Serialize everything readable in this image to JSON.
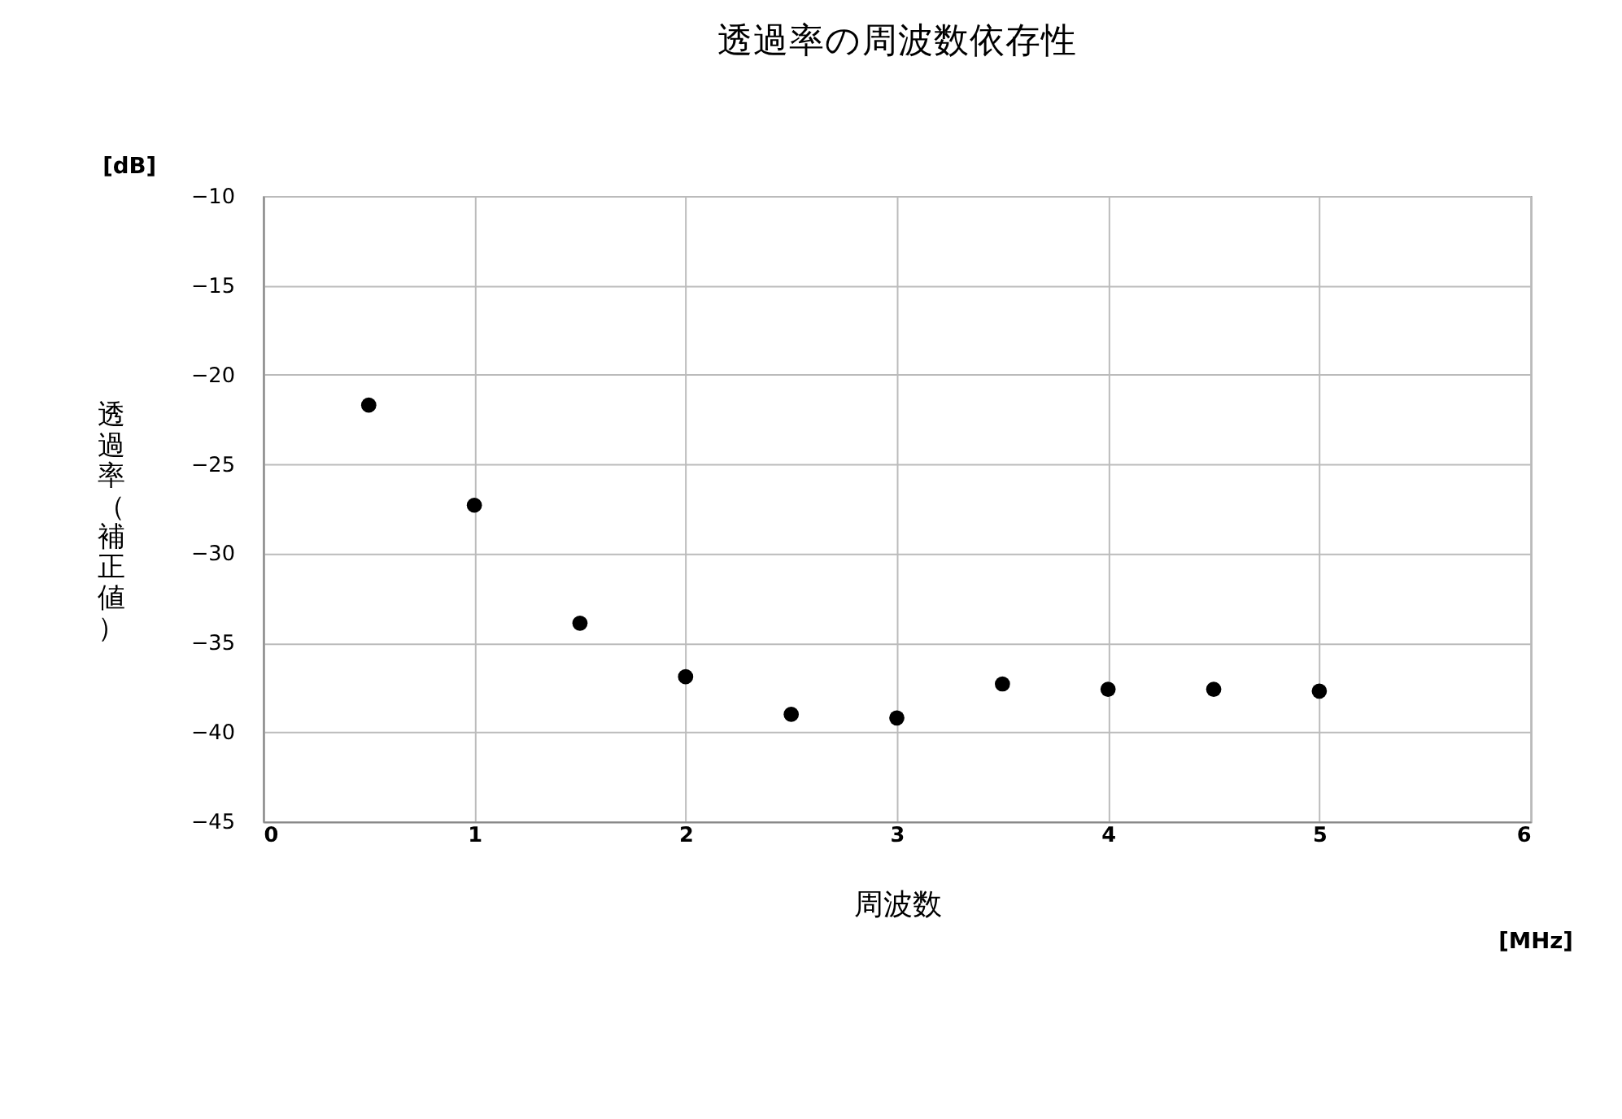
{
  "chart_data": {
    "type": "scatter",
    "title": "透過率の周波数依存性",
    "xlabel": "周波数",
    "ylabel": "透過率（補正値）",
    "annotations": [
      "[dB]",
      "[MHz]"
    ],
    "x": [
      0.5,
      1,
      1.5,
      2,
      2.5,
      3,
      3.5,
      4,
      4.5,
      5
    ],
    "series": [
      {
        "color": "#000000",
        "values": [
          -21.7,
          -27.3,
          -33.9,
          -36.9,
          -39.0,
          -39.2,
          -37.3,
          -37.6,
          -37.6,
          -37.7
        ]
      }
    ],
    "xlim": [
      0,
      6
    ],
    "xticks": [
      0,
      1,
      2,
      3,
      4,
      5,
      6
    ],
    "ylim": [
      -45,
      -10
    ],
    "yticks": [
      -45,
      -40,
      -35,
      -30,
      -25,
      -20,
      -15,
      -10
    ],
    "grid": true,
    "marker": "circle"
  }
}
